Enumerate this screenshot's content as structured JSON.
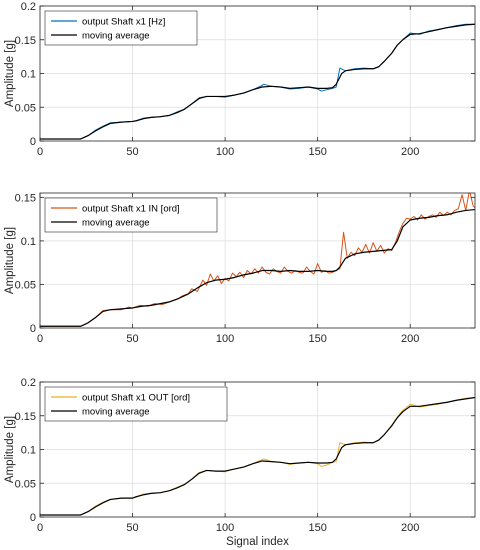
{
  "chart_data": [
    {
      "type": "line",
      "title": "",
      "xlabel": "",
      "ylabel": "Amplitude [g]",
      "xlim": [
        0,
        235
      ],
      "ylim": [
        0,
        0.2
      ],
      "xticks": [
        0,
        50,
        100,
        150,
        200
      ],
      "yticks": [
        0,
        0.05,
        0.1,
        0.15,
        0.2
      ],
      "xtick_labels": [
        "0",
        "50",
        "100",
        "150",
        "200"
      ],
      "ytick_labels": [
        "0",
        "0.05",
        "0.1",
        "0.15",
        "0.2"
      ],
      "grid": true,
      "legend_position": "top-left",
      "series": [
        {
          "name": "output Shaft x1 [Hz]",
          "color": "#0072BD",
          "x": [
            0,
            22,
            26,
            30,
            34,
            38,
            44,
            50,
            52,
            56,
            60,
            65,
            70,
            74,
            78,
            82,
            86,
            90,
            95,
            100,
            105,
            110,
            115,
            119,
            121,
            125,
            130,
            135,
            140,
            145,
            150,
            152,
            155,
            158,
            160,
            162,
            165,
            170,
            175,
            180,
            183,
            186,
            190,
            193,
            196,
            200,
            205,
            210,
            215,
            220,
            225,
            230,
            235
          ],
          "y": [
            0.003,
            0.003,
            0.008,
            0.016,
            0.022,
            0.027,
            0.028,
            0.029,
            0.03,
            0.034,
            0.035,
            0.036,
            0.038,
            0.043,
            0.047,
            0.055,
            0.064,
            0.066,
            0.066,
            0.065,
            0.068,
            0.071,
            0.076,
            0.081,
            0.084,
            0.081,
            0.08,
            0.077,
            0.078,
            0.08,
            0.077,
            0.074,
            0.076,
            0.078,
            0.08,
            0.108,
            0.104,
            0.107,
            0.108,
            0.107,
            0.11,
            0.118,
            0.13,
            0.142,
            0.15,
            0.16,
            0.158,
            0.163,
            0.165,
            0.168,
            0.171,
            0.173,
            0.173
          ]
        },
        {
          "name": "moving average",
          "color": "#000000",
          "x": [
            0,
            22,
            26,
            30,
            34,
            38,
            44,
            50,
            52,
            56,
            60,
            65,
            70,
            74,
            78,
            82,
            86,
            90,
            95,
            100,
            105,
            110,
            115,
            120,
            125,
            130,
            135,
            140,
            145,
            150,
            155,
            158,
            160,
            163,
            165,
            170,
            175,
            180,
            183,
            186,
            190,
            193,
            196,
            200,
            205,
            210,
            215,
            220,
            225,
            230,
            235
          ],
          "y": [
            0.003,
            0.003,
            0.008,
            0.015,
            0.021,
            0.026,
            0.028,
            0.029,
            0.03,
            0.033,
            0.035,
            0.036,
            0.038,
            0.042,
            0.047,
            0.055,
            0.063,
            0.066,
            0.066,
            0.066,
            0.068,
            0.071,
            0.076,
            0.08,
            0.081,
            0.08,
            0.078,
            0.079,
            0.08,
            0.078,
            0.078,
            0.079,
            0.084,
            0.1,
            0.104,
            0.106,
            0.107,
            0.107,
            0.11,
            0.118,
            0.13,
            0.142,
            0.15,
            0.158,
            0.159,
            0.162,
            0.165,
            0.168,
            0.17,
            0.172,
            0.173
          ]
        }
      ]
    },
    {
      "type": "line",
      "title": "",
      "xlabel": "",
      "ylabel": "Amplitude [g]",
      "xlim": [
        0,
        235
      ],
      "ylim": [
        0,
        0.155
      ],
      "xticks": [
        0,
        50,
        100,
        150,
        200
      ],
      "yticks": [
        0,
        0.05,
        0.1,
        0.15
      ],
      "xtick_labels": [
        "0",
        "50",
        "100",
        "150",
        "200"
      ],
      "ytick_labels": [
        "0",
        "0.05",
        "0.1",
        "0.15"
      ],
      "grid": true,
      "legend_position": "top-left",
      "series": [
        {
          "name": "output Shaft x1 IN [ord]",
          "color": "#D95319",
          "x": [
            0,
            22,
            26,
            30,
            34,
            38,
            44,
            48,
            50,
            54,
            58,
            62,
            66,
            70,
            74,
            77,
            80,
            82,
            85,
            88,
            90,
            92,
            94,
            96,
            98,
            100,
            102,
            104,
            106,
            108,
            110,
            112,
            114,
            116,
            118,
            120,
            122,
            124,
            126,
            128,
            130,
            132,
            134,
            136,
            138,
            140,
            142,
            144,
            146,
            148,
            150,
            152,
            154,
            156,
            158,
            160,
            162,
            164,
            166,
            168,
            170,
            172,
            174,
            176,
            178,
            180,
            182,
            184,
            186,
            188,
            190,
            192,
            194,
            196,
            198,
            200,
            202,
            204,
            206,
            208,
            210,
            212,
            214,
            216,
            218,
            220,
            222,
            224,
            226,
            228,
            230,
            232,
            234,
            235
          ],
          "y": [
            0.002,
            0.002,
            0.006,
            0.012,
            0.02,
            0.021,
            0.021,
            0.024,
            0.023,
            0.026,
            0.025,
            0.028,
            0.027,
            0.03,
            0.033,
            0.037,
            0.039,
            0.045,
            0.042,
            0.055,
            0.049,
            0.062,
            0.054,
            0.06,
            0.051,
            0.057,
            0.054,
            0.063,
            0.059,
            0.064,
            0.058,
            0.066,
            0.062,
            0.068,
            0.063,
            0.07,
            0.064,
            0.062,
            0.068,
            0.065,
            0.063,
            0.07,
            0.065,
            0.063,
            0.066,
            0.064,
            0.063,
            0.07,
            0.065,
            0.062,
            0.074,
            0.064,
            0.066,
            0.063,
            0.064,
            0.066,
            0.068,
            0.11,
            0.08,
            0.087,
            0.083,
            0.092,
            0.087,
            0.096,
            0.086,
            0.098,
            0.088,
            0.095,
            0.086,
            0.091,
            0.089,
            0.098,
            0.11,
            0.12,
            0.126,
            0.125,
            0.128,
            0.124,
            0.13,
            0.125,
            0.128,
            0.13,
            0.127,
            0.133,
            0.129,
            0.133,
            0.13,
            0.135,
            0.137,
            0.153,
            0.135,
            0.158,
            0.14,
            0.138
          ]
        },
        {
          "name": "moving average",
          "color": "#000000",
          "x": [
            0,
            22,
            26,
            30,
            34,
            38,
            44,
            50,
            55,
            60,
            65,
            70,
            75,
            80,
            85,
            90,
            95,
            100,
            105,
            110,
            115,
            120,
            125,
            130,
            135,
            140,
            145,
            150,
            155,
            158,
            160,
            162,
            165,
            170,
            175,
            180,
            185,
            190,
            193,
            196,
            200,
            205,
            210,
            215,
            220,
            225,
            230,
            235
          ],
          "y": [
            0.002,
            0.002,
            0.006,
            0.012,
            0.019,
            0.021,
            0.022,
            0.023,
            0.025,
            0.026,
            0.028,
            0.03,
            0.034,
            0.039,
            0.046,
            0.052,
            0.055,
            0.056,
            0.058,
            0.061,
            0.063,
            0.066,
            0.066,
            0.065,
            0.066,
            0.065,
            0.065,
            0.066,
            0.065,
            0.065,
            0.066,
            0.07,
            0.08,
            0.085,
            0.087,
            0.088,
            0.089,
            0.09,
            0.1,
            0.116,
            0.124,
            0.126,
            0.127,
            0.129,
            0.13,
            0.133,
            0.135,
            0.136
          ]
        }
      ]
    },
    {
      "type": "line",
      "title": "",
      "xlabel": "Signal index",
      "ylabel": "Amplitude [g]",
      "xlim": [
        0,
        235
      ],
      "ylim": [
        0,
        0.2
      ],
      "xticks": [
        0,
        50,
        100,
        150,
        200
      ],
      "yticks": [
        0,
        0.05,
        0.1,
        0.15,
        0.2
      ],
      "xtick_labels": [
        "0",
        "50",
        "100",
        "150",
        "200"
      ],
      "ytick_labels": [
        "0",
        "0.05",
        "0.1",
        "0.15",
        "0.2"
      ],
      "grid": true,
      "legend_position": "top-left",
      "series": [
        {
          "name": "output Shaft x1 OUT [ord]",
          "color": "#EDB120",
          "x": [
            0,
            22,
            26,
            30,
            34,
            38,
            44,
            50,
            52,
            56,
            60,
            65,
            70,
            74,
            78,
            82,
            86,
            90,
            95,
            100,
            105,
            110,
            115,
            119,
            121,
            125,
            130,
            135,
            140,
            145,
            150,
            152,
            155,
            158,
            160,
            162,
            165,
            170,
            175,
            180,
            183,
            186,
            190,
            193,
            196,
            200,
            205,
            210,
            215,
            220,
            225,
            230,
            235
          ],
          "y": [
            0.003,
            0.003,
            0.008,
            0.016,
            0.022,
            0.026,
            0.028,
            0.028,
            0.03,
            0.034,
            0.035,
            0.036,
            0.039,
            0.044,
            0.048,
            0.056,
            0.066,
            0.069,
            0.068,
            0.067,
            0.071,
            0.074,
            0.079,
            0.084,
            0.086,
            0.082,
            0.081,
            0.078,
            0.08,
            0.081,
            0.079,
            0.075,
            0.077,
            0.081,
            0.082,
            0.11,
            0.107,
            0.11,
            0.111,
            0.11,
            0.114,
            0.122,
            0.136,
            0.148,
            0.158,
            0.167,
            0.163,
            0.165,
            0.167,
            0.17,
            0.173,
            0.176,
            0.177
          ]
        },
        {
          "name": "moving average",
          "color": "#000000",
          "x": [
            0,
            22,
            26,
            30,
            34,
            38,
            44,
            50,
            52,
            56,
            60,
            65,
            70,
            74,
            78,
            82,
            86,
            90,
            95,
            100,
            105,
            110,
            115,
            120,
            125,
            130,
            135,
            140,
            145,
            150,
            155,
            158,
            160,
            163,
            165,
            170,
            175,
            180,
            183,
            186,
            190,
            193,
            196,
            200,
            205,
            210,
            215,
            220,
            225,
            230,
            235
          ],
          "y": [
            0.003,
            0.003,
            0.008,
            0.015,
            0.021,
            0.026,
            0.028,
            0.028,
            0.03,
            0.033,
            0.035,
            0.036,
            0.039,
            0.043,
            0.048,
            0.056,
            0.065,
            0.069,
            0.068,
            0.068,
            0.071,
            0.074,
            0.079,
            0.083,
            0.082,
            0.081,
            0.079,
            0.08,
            0.081,
            0.08,
            0.08,
            0.081,
            0.086,
            0.103,
            0.107,
            0.109,
            0.11,
            0.11,
            0.114,
            0.122,
            0.135,
            0.147,
            0.156,
            0.164,
            0.164,
            0.166,
            0.168,
            0.17,
            0.173,
            0.175,
            0.177
          ]
        }
      ]
    }
  ]
}
